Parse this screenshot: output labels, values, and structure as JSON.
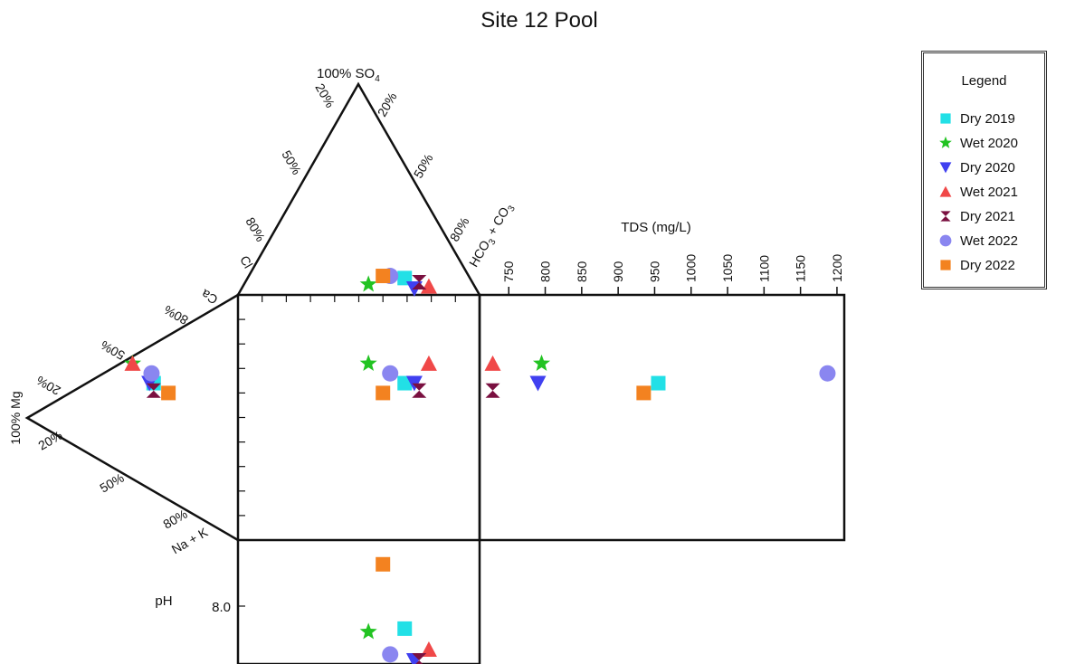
{
  "chart_data": {
    "type": "scatter",
    "subtype": "durov-diagram",
    "title": "Site 12 Pool",
    "anion_apex_label": "100% SO",
    "anion_apex_sub": "4",
    "anion_left_label": "Cl",
    "anion_right_label": "HCO",
    "anion_right_sub1": "3",
    "anion_right_mid": " + CO",
    "anion_right_sub2": "3",
    "cation_apex_label": "100% Mg",
    "cation_top_label": "Ca",
    "cation_bottom_label": "Na + K",
    "anion_left_ticks": [
      "20%",
      "50%",
      "80%"
    ],
    "anion_right_ticks": [
      "20%",
      "50%",
      "80%"
    ],
    "cation_top_ticks": [
      "20%",
      "50%",
      "80%"
    ],
    "cation_bottom_ticks": [
      "20%",
      "50%",
      "80%"
    ],
    "tds_label": "TDS (mg/L)",
    "tds_ticks": [
      "750",
      "800",
      "850",
      "900",
      "950",
      "1000",
      "1050",
      "1100",
      "1150",
      "1200"
    ],
    "tds_range": [
      710,
      1210
    ],
    "ph_label": "pH",
    "ph_tick": "8.0",
    "ph_range": [
      8.0,
      7.64
    ],
    "legend": {
      "title": "Legend",
      "placement": "right",
      "items": [
        {
          "name": "Dry 2019",
          "marker": "square",
          "color": "#22E0E6"
        },
        {
          "name": "Wet 2020",
          "marker": "star",
          "color": "#22C322"
        },
        {
          "name": "Dry 2020",
          "marker": "triangle-down",
          "color": "#4040F0"
        },
        {
          "name": "Wet 2021",
          "marker": "triangle-up",
          "color": "#F04848"
        },
        {
          "name": "Dry 2021",
          "marker": "hourglass",
          "color": "#7A1040"
        },
        {
          "name": "Wet 2022",
          "marker": "circle",
          "color": "#8A86F0"
        },
        {
          "name": "Dry 2022",
          "marker": "square",
          "color": "#F38220"
        }
      ]
    },
    "series": [
      {
        "name": "Dry 2019",
        "anion_so4": 8,
        "anion_hco3": 69,
        "cation_mg": 40,
        "cation_na": 36,
        "tds": 955,
        "ph": 7.86
      },
      {
        "name": "Wet 2020",
        "anion_so4": 5,
        "anion_hco3": 54,
        "cation_mg": 50,
        "cation_na": 28,
        "tds": 795,
        "ph": 7.84
      },
      {
        "name": "Dry 2020",
        "anion_so4": 3,
        "anion_hco3": 73,
        "cation_mg": 42,
        "cation_na": 36,
        "tds": 790,
        "ph": 7.65
      },
      {
        "name": "Wet 2021",
        "anion_so4": 4,
        "anion_hco3": 79,
        "cation_mg": 50,
        "cation_na": 28,
        "tds": 728,
        "ph": 7.73
      },
      {
        "name": "Dry 2021",
        "anion_so4": 6,
        "anion_hco3": 75,
        "cation_mg": 40,
        "cation_na": 39,
        "tds": 728,
        "ph": 7.64
      },
      {
        "name": "Wet 2022",
        "anion_so4": 9,
        "anion_hco3": 63,
        "cation_mg": 41,
        "cation_na": 32,
        "tds": 1187,
        "ph": 7.7
      },
      {
        "name": "Dry 2022",
        "anion_so4": 9,
        "anion_hco3": 60,
        "cation_mg": 33,
        "cation_na": 40,
        "tds": 935,
        "ph": 8.26
      }
    ]
  }
}
